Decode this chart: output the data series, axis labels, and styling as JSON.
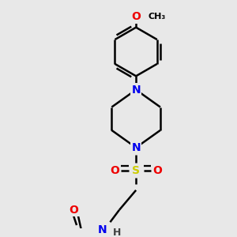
{
  "bg_color": "#e8e8e8",
  "line_color": "#000000",
  "bond_width": 1.8,
  "atom_colors": {
    "N": "#0000ee",
    "O": "#ee0000",
    "S": "#cccc00",
    "C": "#000000",
    "H": "#404040"
  },
  "figsize": [
    3.0,
    3.0
  ],
  "dpi": 100,
  "xlim": [
    0,
    300
  ],
  "ylim": [
    0,
    300
  ]
}
